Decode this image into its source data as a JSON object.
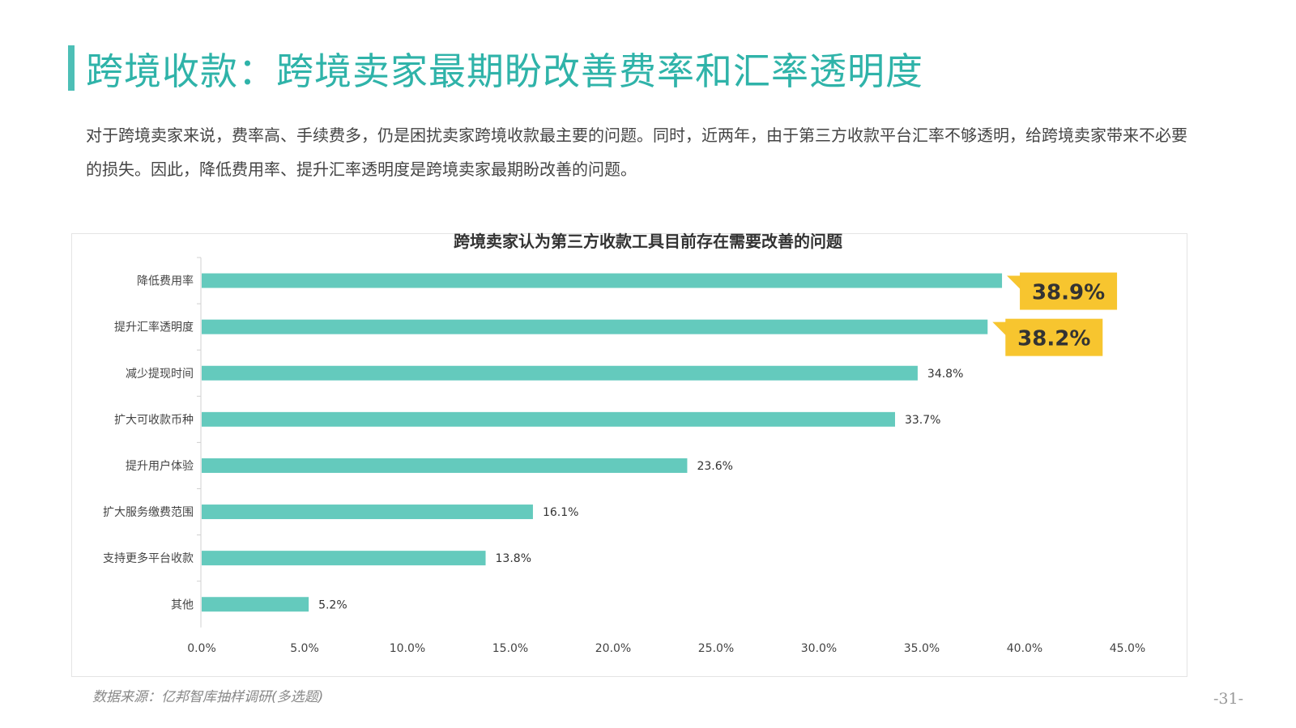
{
  "page": {
    "title": "跨境收款：跨境卖家最期盼改善费率和汇率透明度",
    "intro": "对于跨境卖家来说，费率高、手续费多，仍是困扰卖家跨境收款最主要的问题。同时，近两年，由于第三方收款平台汇率不够透明，给跨境卖家带来不必要的损失。因此，降低费用率、提升汇率透明度是跨境卖家最期盼改善的问题。",
    "source": "数据来源：亿邦智库抽样调研(多选题)",
    "page_number": "-31-"
  },
  "colors": {
    "accent": "#4dbfb6",
    "bar": "#64cabd",
    "callout": "#f7c52f"
  },
  "chart_data": {
    "type": "bar",
    "orientation": "horizontal",
    "title": "跨境卖家认为第三方收款工具目前存在需要改善的问题",
    "categories": [
      "降低费用率",
      "提升汇率透明度",
      "减少提现时间",
      "扩大可收款币种",
      "提升用户体验",
      "扩大服务缴费范围",
      "支持更多平台收款",
      "其他"
    ],
    "values": [
      38.9,
      38.2,
      34.8,
      33.7,
      23.6,
      16.1,
      13.8,
      5.2
    ],
    "value_labels": [
      "38.9%",
      "38.2%",
      "34.8%",
      "33.7%",
      "23.6%",
      "16.1%",
      "13.8%",
      "5.2%"
    ],
    "highlighted": [
      0,
      1
    ],
    "xlim": [
      0,
      45
    ],
    "xticks": [
      0,
      5,
      10,
      15,
      20,
      25,
      30,
      35,
      40,
      45
    ],
    "xtick_labels": [
      "0.0%",
      "5.0%",
      "10.0%",
      "15.0%",
      "20.0%",
      "25.0%",
      "30.0%",
      "35.0%",
      "40.0%",
      "45.0%"
    ],
    "xlabel": "",
    "ylabel": "",
    "grid": false
  }
}
